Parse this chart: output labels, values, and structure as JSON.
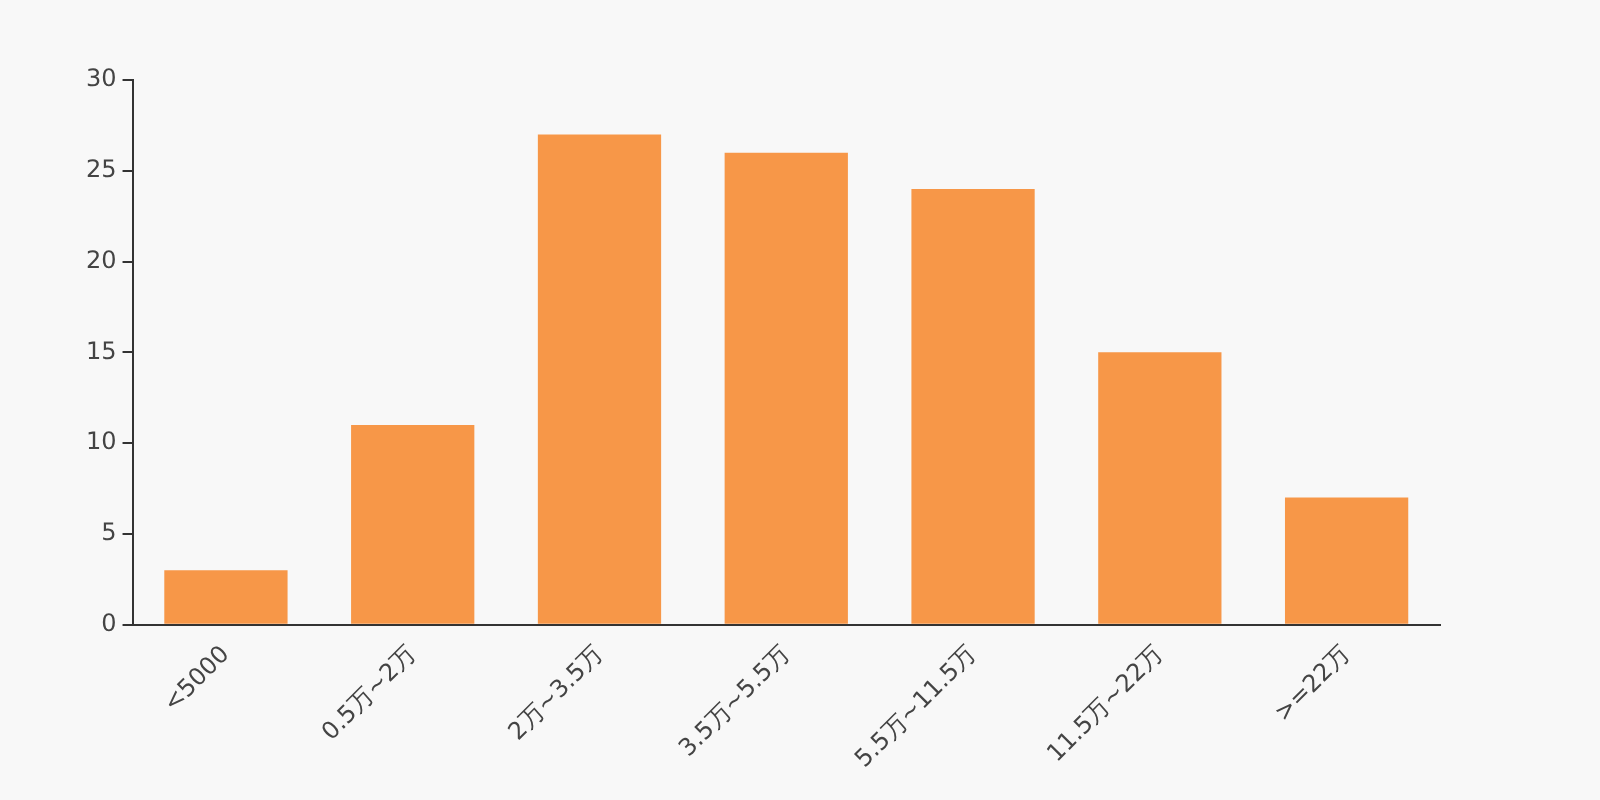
{
  "chart_data": {
    "type": "bar",
    "categories": [
      "<5000",
      "0.5万~2万",
      "2万~3.5万",
      "3.5万~5.5万",
      "5.5万~11.5万",
      "11.5万~22万",
      ">=22万"
    ],
    "values": [
      3,
      11,
      27,
      26,
      24,
      15,
      7
    ],
    "color": "#f79748",
    "ylim": [
      0,
      30
    ],
    "yticks": [
      0,
      5,
      10,
      15,
      20,
      25,
      30
    ],
    "grid": false,
    "legend": false
  }
}
